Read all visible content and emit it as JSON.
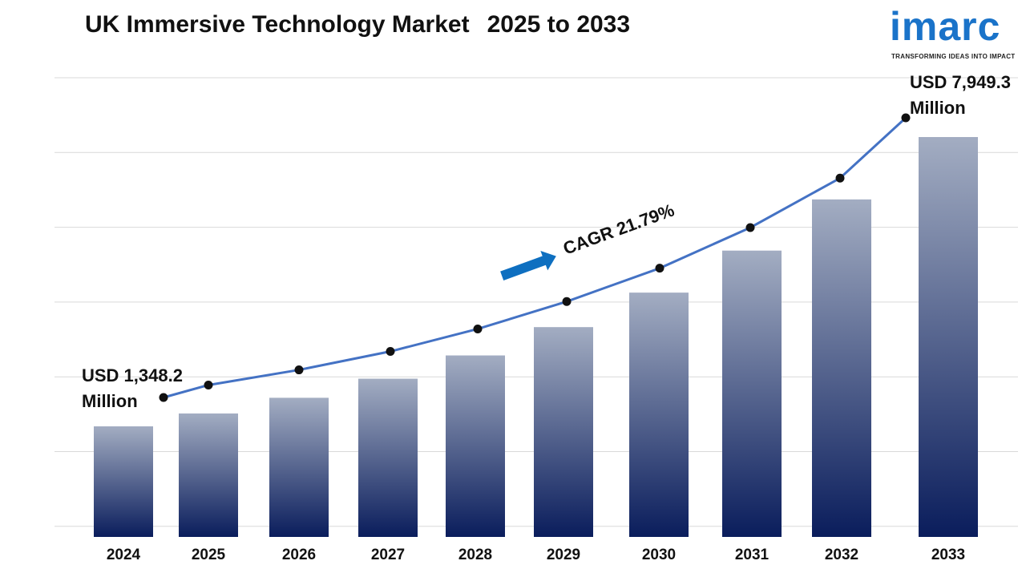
{
  "title": "UK Immersive Technology Market",
  "title_years": "2025 to 2033",
  "logo": {
    "name": "imarc",
    "tagline": "TRANSFORMING IDEAS INTO IMPACT"
  },
  "colors": {
    "bar_top": "#a3adc2",
    "bar_bottom": "#0a1d5c",
    "line": "#4472c4",
    "marker": "#111111",
    "arrow": "#0e6fc0",
    "gridline": "#d9d9d9",
    "logo": "#1a73c9"
  },
  "chart_data": {
    "type": "bar",
    "categories": [
      "2024",
      "2025",
      "2026",
      "2027",
      "2028",
      "2029",
      "2030",
      "2031",
      "2032",
      "2033"
    ],
    "values": [
      1348.2,
      1641.9,
      1999.7,
      2435.4,
      2966.1,
      3612.4,
      4399.6,
      5358.3,
      6525.9,
      7949.3
    ],
    "unit": "USD Million",
    "line_overlay": true,
    "grid": true,
    "annotations": {
      "start_line1": "USD 1,348.2",
      "start_line2": "Million",
      "end_line1": "USD 7,949.3",
      "end_line2": "Million",
      "cagr": "CAGR 21.79%"
    }
  }
}
